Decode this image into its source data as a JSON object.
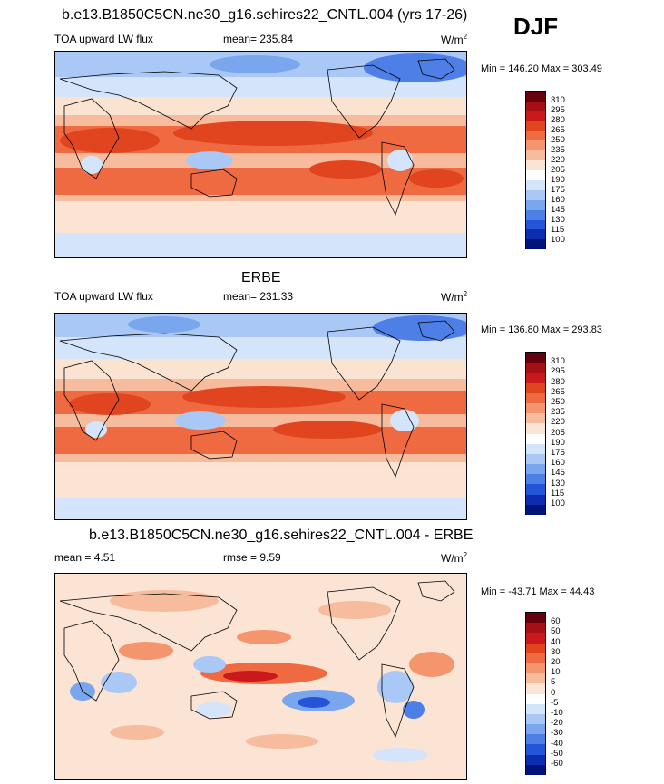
{
  "season": "DJF",
  "panels": [
    {
      "id": "model",
      "title": "b.e13.B1850C5CN.ne30_g16.sehires22_CNTL.004 (yrs 17-26)",
      "variable": "TOA upward LW flux",
      "stat": "mean= 235.84",
      "units": "W/m",
      "units_sup": "2",
      "minmax": "Min = 146.20 Max = 303.49",
      "colorbar": {
        "labels": [
          "310",
          "295",
          "280",
          "265",
          "250",
          "235",
          "220",
          "205",
          "190",
          "175",
          "160",
          "145",
          "130",
          "115",
          "100"
        ],
        "colors": [
          "#67000d",
          "#a50f15",
          "#cb181d",
          "#e0451f",
          "#ef6a40",
          "#f4956e",
          "#f7bb9d",
          "#fce4d4",
          "#ffffff",
          "#d4e4fb",
          "#a9c8f5",
          "#7aa6ee",
          "#4d7fe6",
          "#2455d8",
          "#0d2db0",
          "#00137a"
        ]
      }
    },
    {
      "id": "obs",
      "title": "ERBE",
      "variable": "TOA upward LW flux",
      "stat": "mean= 231.33",
      "units": "W/m",
      "units_sup": "2",
      "minmax": "Min = 136.80 Max = 293.83",
      "colorbar": {
        "labels": [
          "310",
          "295",
          "280",
          "265",
          "250",
          "235",
          "220",
          "205",
          "190",
          "175",
          "160",
          "145",
          "130",
          "115",
          "100"
        ],
        "colors": [
          "#67000d",
          "#a50f15",
          "#cb181d",
          "#e0451f",
          "#ef6a40",
          "#f4956e",
          "#f7bb9d",
          "#fce4d4",
          "#ffffff",
          "#d4e4fb",
          "#a9c8f5",
          "#7aa6ee",
          "#4d7fe6",
          "#2455d8",
          "#0d2db0",
          "#00137a"
        ]
      }
    },
    {
      "id": "diff",
      "title": "b.e13.B1850C5CN.ne30_g16.sehires22_CNTL.004 - ERBE",
      "variable": "mean =   4.51",
      "stat": "rmse =   9.59",
      "units": "W/m",
      "units_sup": "2",
      "minmax": "Min = -43.71 Max =  44.43",
      "colorbar": {
        "labels": [
          "60",
          "50",
          "40",
          "30",
          "20",
          "10",
          "5",
          "0",
          "-5",
          "-10",
          "-20",
          "-30",
          "-40",
          "-50",
          "-60"
        ],
        "colors": [
          "#67000d",
          "#a50f15",
          "#cb181d",
          "#e0451f",
          "#ef6a40",
          "#f4956e",
          "#f7bb9d",
          "#fce4d4",
          "#ffffff",
          "#d4e4fb",
          "#a9c8f5",
          "#7aa6ee",
          "#4d7fe6",
          "#2455d8",
          "#0d2db0",
          "#00137a"
        ]
      }
    }
  ]
}
